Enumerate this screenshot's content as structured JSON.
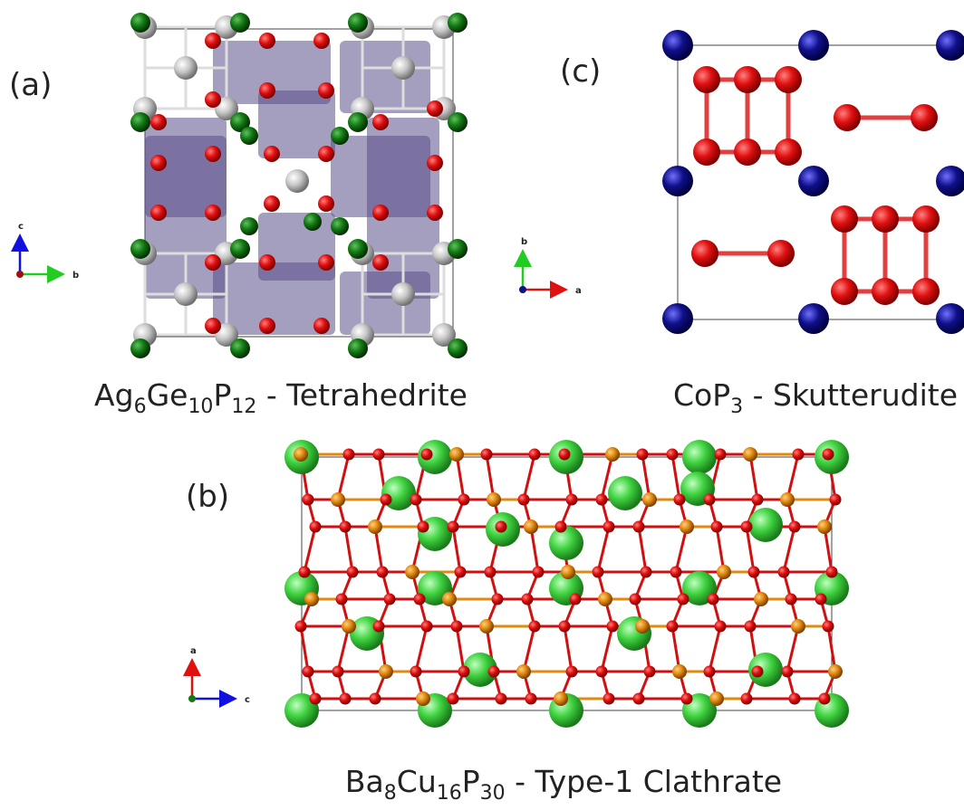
{
  "panels": [
    {
      "label": "(a)",
      "caption": [
        "Ag",
        "6",
        "Ge",
        "10",
        "P",
        "12",
        " - Tetrahedrite"
      ],
      "axes": {
        "up": "c",
        "right": "b"
      }
    },
    {
      "label": "(c)",
      "caption": [
        "CoP",
        "3",
        " - Skutterudite"
      ],
      "axes": {
        "up": "b",
        "right": "a"
      }
    },
    {
      "label": "(b)",
      "caption": [
        "Ba",
        "8",
        "Cu",
        "16",
        "P",
        "30",
        " - Type-1 Clathrate"
      ],
      "axes": {
        "up": "a",
        "right": "c"
      }
    }
  ]
}
